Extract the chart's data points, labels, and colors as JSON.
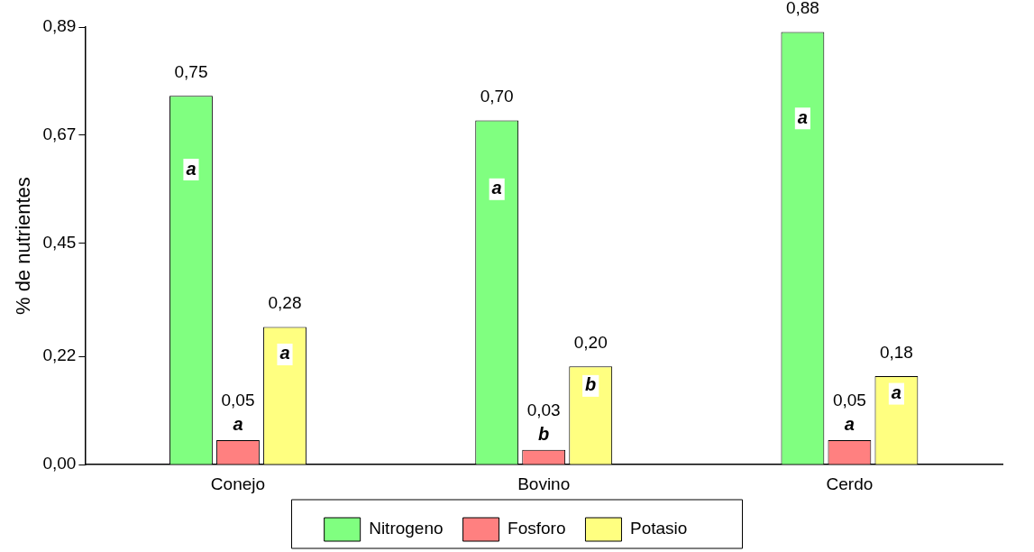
{
  "chart_data": {
    "type": "bar",
    "ylabel": "% de nutrientes",
    "categories": [
      "Conejo",
      "Bovino",
      "Cerdo"
    ],
    "series": [
      {
        "name": "Nitrogeno",
        "color": "#80ff80",
        "values": [
          0.75,
          0.7,
          0.88
        ],
        "value_labels": [
          "0,75",
          "0,70",
          "0,88"
        ]
      },
      {
        "name": "Fosforo",
        "color": "#ff8080",
        "values": [
          0.05,
          0.03,
          0.05
        ],
        "value_labels": [
          "0,05",
          "0,03",
          "0,05"
        ]
      },
      {
        "name": "Potasio",
        "color": "#ffff80",
        "values": [
          0.28,
          0.2,
          0.18
        ],
        "value_labels": [
          "0,28",
          "0,20",
          "0,18"
        ]
      }
    ],
    "ylim": [
      0,
      0.89
    ],
    "yticks": [
      {
        "value": 0,
        "label": "0,00"
      },
      {
        "value": 0.22,
        "label": "0,22"
      },
      {
        "value": 0.45,
        "label": "0,45"
      },
      {
        "value": 0.67,
        "label": "0,67"
      },
      {
        "value": 0.89,
        "label": "0,89"
      }
    ],
    "grid": false,
    "legend": "bottom",
    "annotations": [
      "a",
      "a",
      "a",
      "a",
      "b",
      "b",
      "a",
      "a",
      "a"
    ]
  }
}
